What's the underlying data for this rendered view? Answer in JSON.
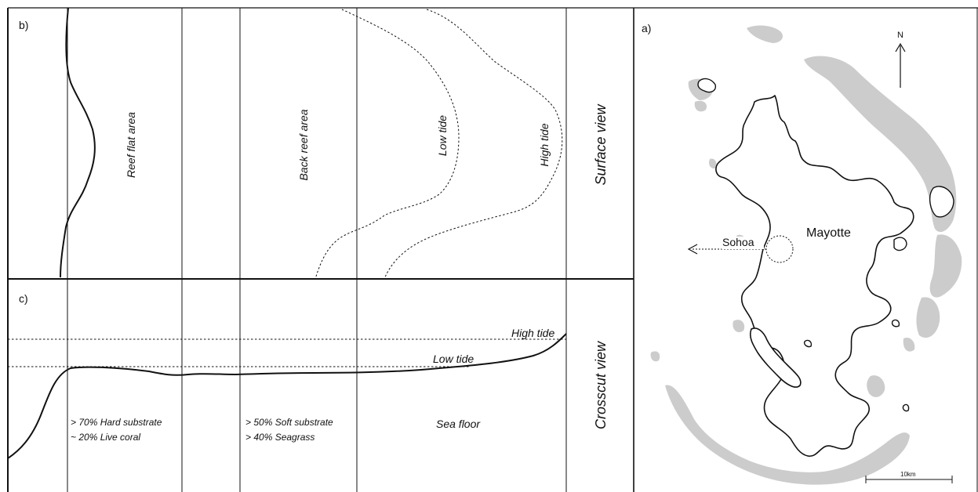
{
  "panel_b": {
    "letter": "b)",
    "reef_flat_label": "Reef flat area",
    "back_reef_label": "Back reef area",
    "low_tide_label": "Low tide",
    "high_tide_label": "High tide",
    "view_label": "Surface view"
  },
  "panel_c": {
    "letter": "c)",
    "high_tide_label": "High tide",
    "low_tide_label": "Low tide",
    "zone1_line1": "> 70% Hard substrate",
    "zone1_line2": "~ 20% Live coral",
    "zone2_line1": "> 50% Soft substrate",
    "zone2_line2": "> 40% Seagrass",
    "zone3_label": "Sea floor",
    "view_label": "Crosscut view"
  },
  "panel_a": {
    "letter": "a)",
    "north_label": "N",
    "island_label": "Mayotte",
    "site_label": "Sohoa",
    "scale_label": "10km"
  },
  "colors": {
    "reef": "#cccccc",
    "line": "#111111"
  }
}
